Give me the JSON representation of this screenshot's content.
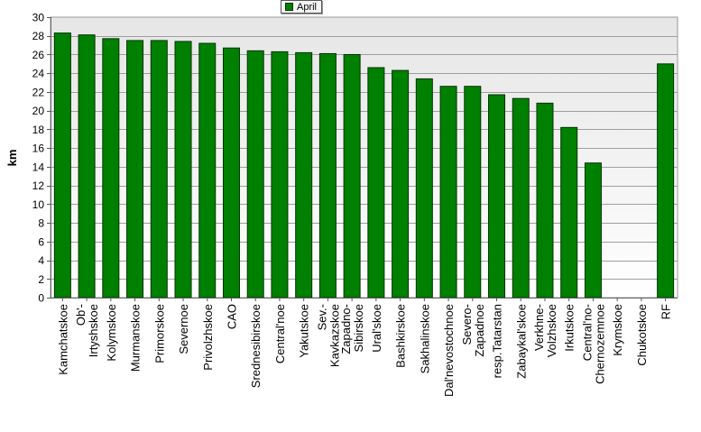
{
  "chart_data": {
    "type": "bar",
    "title": "",
    "xlabel": "",
    "ylabel": "km",
    "ylim": [
      0,
      30
    ],
    "yticks": [
      0,
      2,
      4,
      6,
      8,
      10,
      12,
      14,
      16,
      18,
      20,
      22,
      24,
      26,
      28,
      30
    ],
    "grid": true,
    "legend": "top-center",
    "bar_color": "#008000",
    "categories": [
      "Kamchatskoe",
      "Ob'-Irtyshskoe",
      "Kolymskoe",
      "Murmanskoe",
      "Primorskoe",
      "Severnoe",
      "Privolzhskoe",
      "CAO",
      "Srednesibirskoe",
      "Central'noe",
      "Yakutskoe",
      "Sev.-Kavkazskoe",
      "Zapadno-Sibirskoe",
      "Ural'skoe",
      "Bashkirskoe",
      "Sakhalinskoe",
      "Dal'nevostochnoe",
      "Severo-Zapadnoe",
      "resp.Tatarstan",
      "Zabaykal'skoe",
      "Verkhne-Volzhskoe",
      "Irkutskoe",
      "Central'no-Chernozemnoe",
      "Krymskoe",
      "Chukotskoe",
      "RF"
    ],
    "tick_labels": [
      [
        "Kamchatskoe"
      ],
      [
        "Ob'-",
        "Irtyshskoe"
      ],
      [
        "Kolymskoe"
      ],
      [
        "Murmanskoe"
      ],
      [
        "Primorskoe"
      ],
      [
        "Severnoe"
      ],
      [
        "Privolzhskoe"
      ],
      [
        "CAO"
      ],
      [
        "Srednesibirskoe"
      ],
      [
        "Central'noe"
      ],
      [
        "Yakutskoe"
      ],
      [
        "Sev.-",
        "Kavkazskoe"
      ],
      [
        "Zapadno-",
        "Sibirskoe"
      ],
      [
        "Ural'skoe"
      ],
      [
        "Bashkirskoe"
      ],
      [
        "Sakhalinskoe"
      ],
      [
        "Dal'nevostochnoe"
      ],
      [
        "Severo-",
        "Zapadnoe"
      ],
      [
        "resp.Tatarstan"
      ],
      [
        "Zabaykal'skoe"
      ],
      [
        "Verkhne-",
        "Volzhskoe"
      ],
      [
        "Irkutskoe"
      ],
      [
        "Central'no-",
        "Chernozemnoe"
      ],
      [
        "Krymskoe"
      ],
      [
        "Chukotskoe"
      ],
      [
        "RF"
      ]
    ],
    "series": [
      {
        "name": "April",
        "values": [
          28.3,
          28.1,
          27.7,
          27.5,
          27.5,
          27.4,
          27.2,
          26.7,
          26.4,
          26.3,
          26.2,
          26.1,
          26.0,
          24.6,
          24.3,
          23.4,
          22.6,
          22.6,
          21.7,
          21.3,
          20.8,
          18.2,
          14.4,
          0,
          0,
          25.0
        ]
      }
    ]
  }
}
